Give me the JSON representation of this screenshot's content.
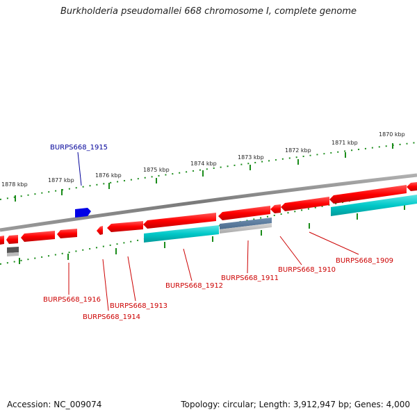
{
  "title": "Burkholderia pseudomallei 668 chromosome I, complete genome",
  "footer": {
    "accession": "Accession: NC_009074",
    "topology": "Topology: circular; Length: 3,912,947 bp; Genes: 4,000"
  },
  "colors": {
    "forward_gene": "#ff0000",
    "reverse_gene_red": "#ff0000",
    "cyan_gene": "#00c8c8",
    "blue_gene": "#0000e6",
    "backbone": "#888888",
    "tick": "#1a8c1a",
    "label_red": "#cc0000",
    "label_blue": "#000099"
  },
  "ticks": [
    "1878 kbp",
    "1877 kbp",
    "1876 kbp",
    "1875 kbp",
    "1874 kbp",
    "1873 kbp",
    "1872 kbp",
    "1871 kbp",
    "1870 kbp"
  ],
  "genes": [
    {
      "label": "BURPS668_1909",
      "color": "#cc0000"
    },
    {
      "label": "BURPS668_1910",
      "color": "#cc0000"
    },
    {
      "label": "BURPS668_1911",
      "color": "#cc0000"
    },
    {
      "label": "BURPS668_1912",
      "color": "#cc0000"
    },
    {
      "label": "BURPS668_1913",
      "color": "#cc0000"
    },
    {
      "label": "BURPS668_1914",
      "color": "#cc0000"
    },
    {
      "label": "BURPS668_1915",
      "color": "#000099"
    },
    {
      "label": "BURPS668_1916",
      "color": "#cc0000"
    }
  ]
}
